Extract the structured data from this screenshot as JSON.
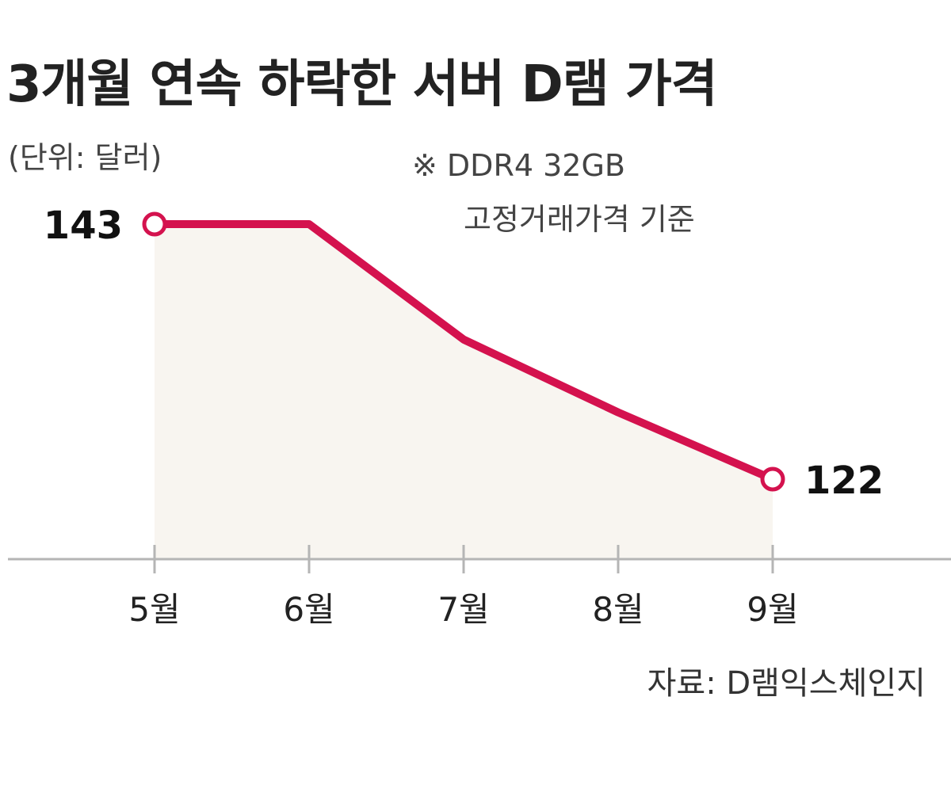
{
  "chart_data": {
    "type": "area",
    "title": "3개월 연속 하락한 서버 D램 가격",
    "unit_label": "(단위: 달러)",
    "note_lines": [
      "※ DDR4 32GB",
      "고정거래가격 기준"
    ],
    "source": "자료: D램익스체인지",
    "categories": [
      "5월",
      "6월",
      "7월",
      "8월",
      "9월"
    ],
    "values": [
      143,
      143,
      133.5,
      127.5,
      122
    ],
    "data_labels": [
      {
        "index": 0,
        "text": "143"
      },
      {
        "index": 4,
        "text": "122"
      }
    ],
    "marked_points": [
      0,
      4
    ],
    "ylim": [
      114,
      145
    ],
    "grid": false,
    "colors": {
      "line": "#d4124e",
      "fill": "#f8f5f0",
      "axis": "#b5b5b5"
    }
  }
}
